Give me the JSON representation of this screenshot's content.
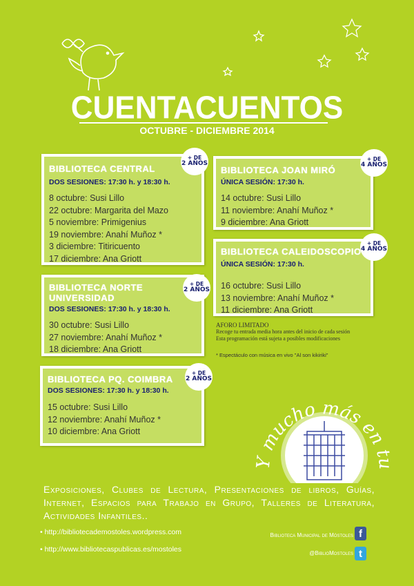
{
  "header": {
    "title": "CUENTACUENTOS",
    "subtitle": "OCTUBRE - DICIEMBRE 2014"
  },
  "libraries": [
    {
      "name": "BIBLIOTECA CENTRAL",
      "age_top": "+ DE",
      "age_bottom": "2 AÑOS",
      "sessions": "DOS SESIONES: 17:30 h. y 18:30 h.",
      "dates": [
        "8 octubre: Susi Lillo",
        "22 octubre: Margarita del Mazo",
        "5 noviembre: Primigenius",
        "19 noviembre: Anahí Muñoz *",
        "3 diciembre: Titiricuento",
        "17 diciembre: Ana Griott"
      ]
    },
    {
      "name": "BIBLIOTECA NORTE UNIVERSIDAD",
      "age_top": "+ DE",
      "age_bottom": "2 AÑOS",
      "sessions": "DOS SESIONES: 17:30 h. y 18:30 h.",
      "dates": [
        "30 octubre: Susi Lillo",
        "27 noviembre: Anahí Muñoz *",
        "18 diciembre: Ana Griott"
      ]
    },
    {
      "name": "BIBLIOTECA PQ. COIMBRA",
      "age_top": "+ DE",
      "age_bottom": "2 AÑOS",
      "sessions": "DOS SESIONES: 17:30 h. y 18:30 h.",
      "dates": [
        "15 octubre: Susi Lillo",
        "12 noviembre: Anahí Muñoz *",
        "10 diciembre: Ana Griott"
      ]
    },
    {
      "name": "BIBLIOTECA JOAN MIRÓ",
      "age_top": "+ DE",
      "age_bottom": "4 AÑOS",
      "sessions": "ÚNICA SESIÓN: 17:30 h.",
      "dates": [
        "14 octubre: Susi Lillo",
        "11 noviembre: Anahí Muñoz *",
        "9 diciembre: Ana Griott"
      ]
    },
    {
      "name": "BIBLIOTECA CALEIDOSCOPIO",
      "age_top": "+ DE",
      "age_bottom": "4 AÑOS",
      "sessions": "ÚNICA SESIÓN: 17:30 h.",
      "dates": [
        "16 octubre: Susi Lillo",
        "13 noviembre: Anahí Muñoz *",
        "11 diciembre: Ana Griott"
      ]
    }
  ],
  "notes": {
    "heading": "AFORO LIMITADO",
    "line1": "Recoge tu entrada media hora antes del inicio de cada sesión",
    "line2": "Esta programación está sujeta a posibles modificaciones",
    "footnote": "* Espectáculo con música en vivo \"Al son kikiriki\""
  },
  "emblem": {
    "text": "Y mucho más en tu biblioteca:"
  },
  "services": "Exposiciones, Clubes de Lectura, Presentaciones de libros, Guías, Internet, Espacios para Trabajo en Grupo, Talleres de Literatura, Actividades Infantiles..",
  "links": [
    "• http://bibliotecademostoles.wordpress.com",
    "• http://www.bibliotecaspublicas.es/mostoles"
  ],
  "social": {
    "facebook": "Biblioteca Municipal de Móstoles",
    "facebook_icon": "f",
    "twitter": "@BiblioMostoles",
    "twitter_icon": "t"
  },
  "colors": {
    "background": "#b3d224",
    "box": "#c5de62",
    "session_text": "#1a2170"
  }
}
